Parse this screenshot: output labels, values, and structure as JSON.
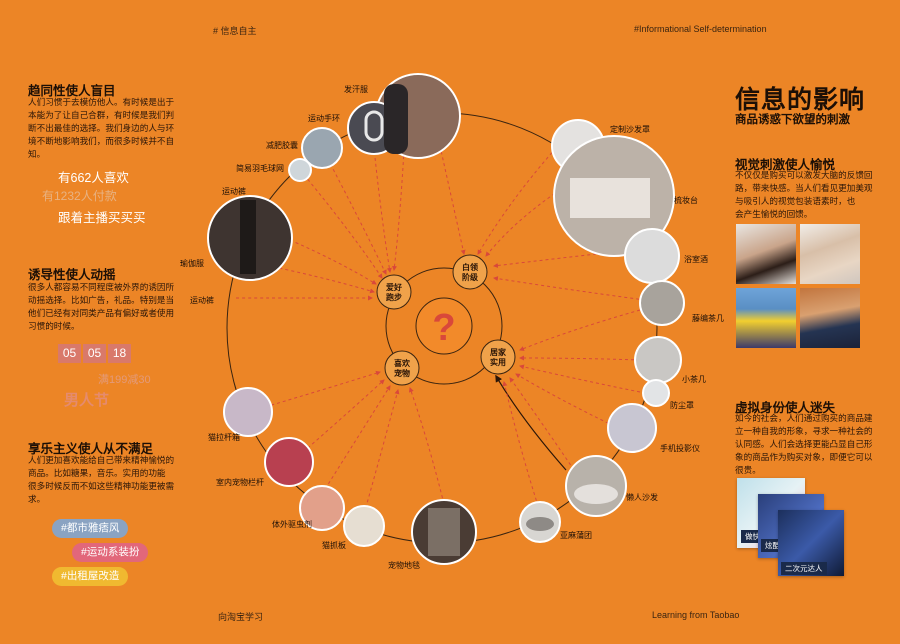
{
  "corners": {
    "top_left": "# 信息自主",
    "top_right": "#Informational Self-determination",
    "bottom_left": "向淘宝学习",
    "bottom_right": "Learning from Taobao"
  },
  "left": {
    "s1_title": "趋同性使人盲目",
    "s1_lines": [
      "人们习惯于去模仿他人。有时候是出于",
      "本能为了让自己合群，有时候是我们判",
      "断不出最佳的选择。我们身边的人与环",
      "境不断地影响我们，而很多时候并不自",
      "知。"
    ],
    "promo1": "有662人喜欢",
    "promo2": "有1232人付款",
    "promo3": "跟着主播买买买",
    "s2_title": "诱导性使人动摇",
    "s2_lines": [
      "很多人都容易不同程度被外界的诱因所",
      "动摇选择。比如广告，礼品。特别是当",
      "他们已经有对同类产品有偏好或者使用",
      "习惯的时候。"
    ],
    "date": [
      "05",
      "05",
      "18"
    ],
    "promo4": "满199减30",
    "promo5": "男人节",
    "s3_title": "享乐主义使人从不满足",
    "s3_lines": [
      "人们更加喜欢能给自己带来精神愉悦的",
      "商品。比如糖果，音乐。实用的功能",
      "很多时候反而不如这些精神功能更被需",
      "求。"
    ],
    "tags": [
      "#都市雅痞风",
      "#运动系装扮",
      "#出租屋改造"
    ]
  },
  "right": {
    "title": "信息的影响",
    "subtitle": "商品诱惑下欲望的刺激",
    "s1_title": "视觉刺激使人愉悦",
    "s1_lines": [
      "不仅仅是购买可以激发大脑的反馈回",
      "路，带来快感。当人们看见更加美观",
      "与吸引人的视觉包装语素时，也",
      "会产生愉悦的回馈。"
    ],
    "s2_title": "虚拟身份使人迷失",
    "s2_lines": [
      "如今的社会，人们通过购买的商品建",
      "立一种自我的形象，寻求一种社会的",
      "认同感。人们会选择更能凸显自己形",
      "象的商品作为购买对象，即便它可以",
      "很贵。"
    ],
    "cards": [
      "做快小当家",
      "炫酷极客控",
      "二次元达人"
    ]
  },
  "center": {
    "question": "?",
    "nodes": [
      "爱好\n跑步",
      "白领\n阶级",
      "居家\n实用",
      "喜欢\n宠物"
    ]
  },
  "products": [
    "发汗服",
    "运动手环",
    "减肥胶囊",
    "简易羽毛球网",
    "运动裤",
    "瑜伽服",
    "运动裤",
    "定制沙发罩",
    "梳妆台",
    "浴室酒",
    "藤编茶几",
    "小茶几",
    "防尘罩",
    "手机投影仪",
    "懒人沙发",
    "亚麻蒲团",
    "宠物地毯",
    "猫抓板",
    "体外驱虫剂",
    "室内宠物栏杆",
    "猫拉杆箱"
  ],
  "colors": {
    "background": "#ec8526",
    "accent_red": "#d9483a",
    "tag1": "#8aa3c2",
    "tag2": "#e2677a",
    "tag3": "#f0b930"
  }
}
